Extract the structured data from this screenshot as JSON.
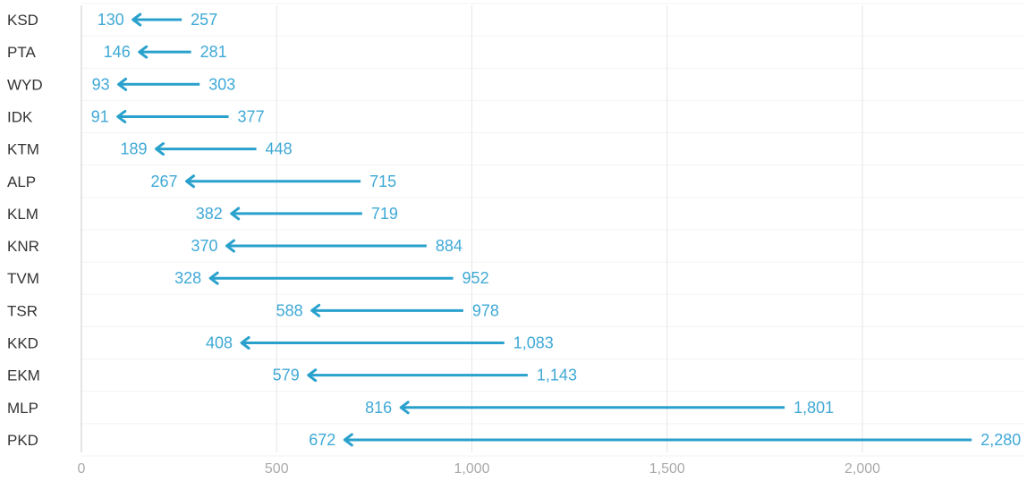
{
  "chart_data": {
    "type": "bar",
    "subtype": "arrow-range",
    "title": "",
    "xlabel": "",
    "ylabel": "",
    "xlim": [
      0,
      2400
    ],
    "xticks": [
      0,
      500,
      1000,
      1500,
      2000
    ],
    "xtick_labels": [
      "0",
      "500",
      "1,000",
      "1,500",
      "2,000"
    ],
    "grid": true,
    "color": "#2aa1cc",
    "label_color": "#3fa9d6",
    "categories": [
      "KSD",
      "PTA",
      "WYD",
      "IDK",
      "KTM",
      "ALP",
      "KLM",
      "KNR",
      "TVM",
      "TSR",
      "KKD",
      "EKM",
      "MLP",
      "PKD"
    ],
    "series": [
      {
        "values": [
          257,
          281,
          303,
          377,
          448,
          715,
          719,
          884,
          952,
          978,
          1083,
          1143,
          1801,
          2280
        ]
      },
      {
        "values": [
          130,
          146,
          93,
          91,
          189,
          267,
          382,
          370,
          328,
          588,
          408,
          579,
          816,
          672
        ]
      }
    ],
    "start_labels": [
      "257",
      "281",
      "303",
      "377",
      "448",
      "715",
      "719",
      "884",
      "952",
      "978",
      "1,083",
      "1,143",
      "1,801",
      "2,280"
    ],
    "end_labels": [
      "130",
      "146",
      "93",
      "91",
      "189",
      "267",
      "382",
      "370",
      "328",
      "588",
      "408",
      "579",
      "816",
      "672"
    ]
  }
}
